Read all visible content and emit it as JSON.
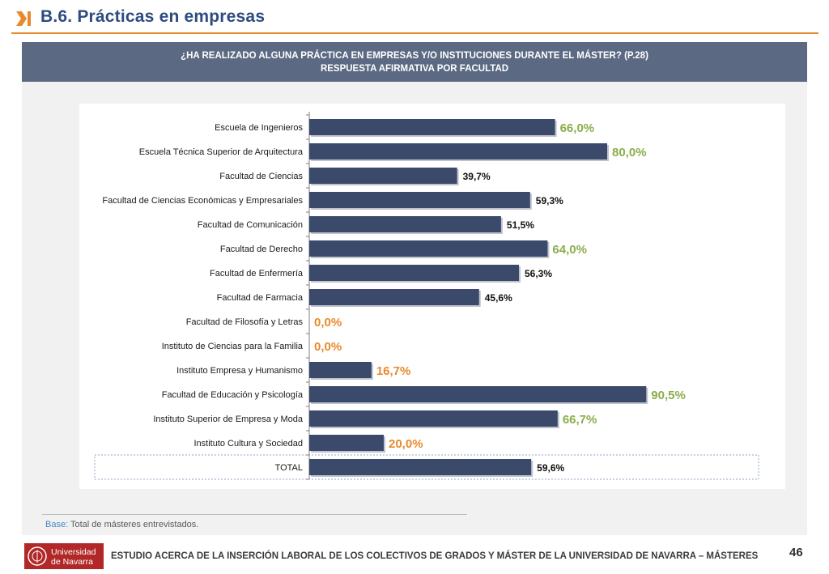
{
  "header": {
    "title": "B.6. Prácticas en empresas",
    "accent_color": "#E8892B",
    "icon": "chevron-bar-icon"
  },
  "banner": {
    "line1": "¿HA REALIZADO ALGUNA PRÁCTICA EN EMPRESAS Y/O INSTITUCIONES DURANTE EL MÁSTER? (P.28)",
    "line2": "RESPUESTA AFIRMATIVA POR FACULTAD"
  },
  "chart_data": {
    "type": "bar",
    "orientation": "horizontal",
    "xlim": [
      0,
      100
    ],
    "grid": false,
    "bar_color": "#3B4A6B",
    "categories": [
      "Escuela de Ingenieros",
      "Escuela Técnica Superior de Arquitectura",
      "Facultad de Ciencias",
      "Facultad de Ciencias Económicas y Empresariales",
      "Facultad de Comunicación",
      "Facultad de Derecho",
      "Facultad de Enfermería",
      "Facultad de Farmacia",
      "Facultad de Filosofía y Letras",
      "Instituto de Ciencias para la Familia",
      "Instituto Empresa y Humanismo",
      "Facultad de Educación y Psicología",
      "Instituto Superior de Empresa y Moda",
      "Instituto Cultura y Sociedad",
      "TOTAL"
    ],
    "values": [
      66.0,
      80.0,
      39.7,
      59.3,
      51.5,
      64.0,
      56.3,
      45.6,
      0.0,
      0.0,
      16.7,
      90.5,
      66.7,
      20.0,
      59.6
    ],
    "data_labels": [
      "66,0%",
      "80,0%",
      "39,7%",
      "59,3%",
      "51,5%",
      "64,0%",
      "56,3%",
      "45,6%",
      "0,0%",
      "0,0%",
      "16,7%",
      "90,5%",
      "66,7%",
      "20,0%",
      "59,6%"
    ],
    "label_styles": [
      "green",
      "green",
      "dark",
      "dark",
      "dark",
      "green",
      "dark",
      "dark",
      "orange",
      "orange",
      "orange",
      "green",
      "green",
      "orange",
      "dark"
    ],
    "label_colors": {
      "green": "#8AAE4A",
      "orange": "#E8892B",
      "dark": "#111111"
    },
    "highlighted_category": "TOTAL"
  },
  "base_note": {
    "label": "Base:",
    "text": "Total de másteres entrevistados."
  },
  "footer": {
    "logo_text_1": "Universidad",
    "logo_text_2": "de Navarra",
    "text": "ESTUDIO ACERCA DE LA INSERCIÓN LABORAL DE LOS COLECTIVOS DE GRADOS Y MÁSTER DE LA UNIVERSIDAD DE NAVARRA – MÁSTERES",
    "page_number": "46"
  }
}
